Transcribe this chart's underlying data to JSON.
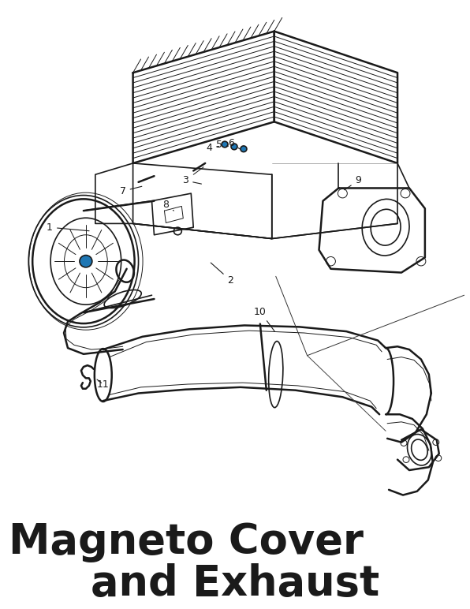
{
  "title_line1": "Magneto Cover",
  "title_line2": "and Exhaust",
  "title_color": "#1a1a1a",
  "title_fontsize": 38,
  "bg_color": "#ffffff",
  "figsize": [
    5.96,
    7.72
  ],
  "dpi": 100,
  "line_color": "#1a1a1a",
  "lw_thick": 1.8,
  "lw_main": 1.2,
  "lw_thin": 0.7
}
